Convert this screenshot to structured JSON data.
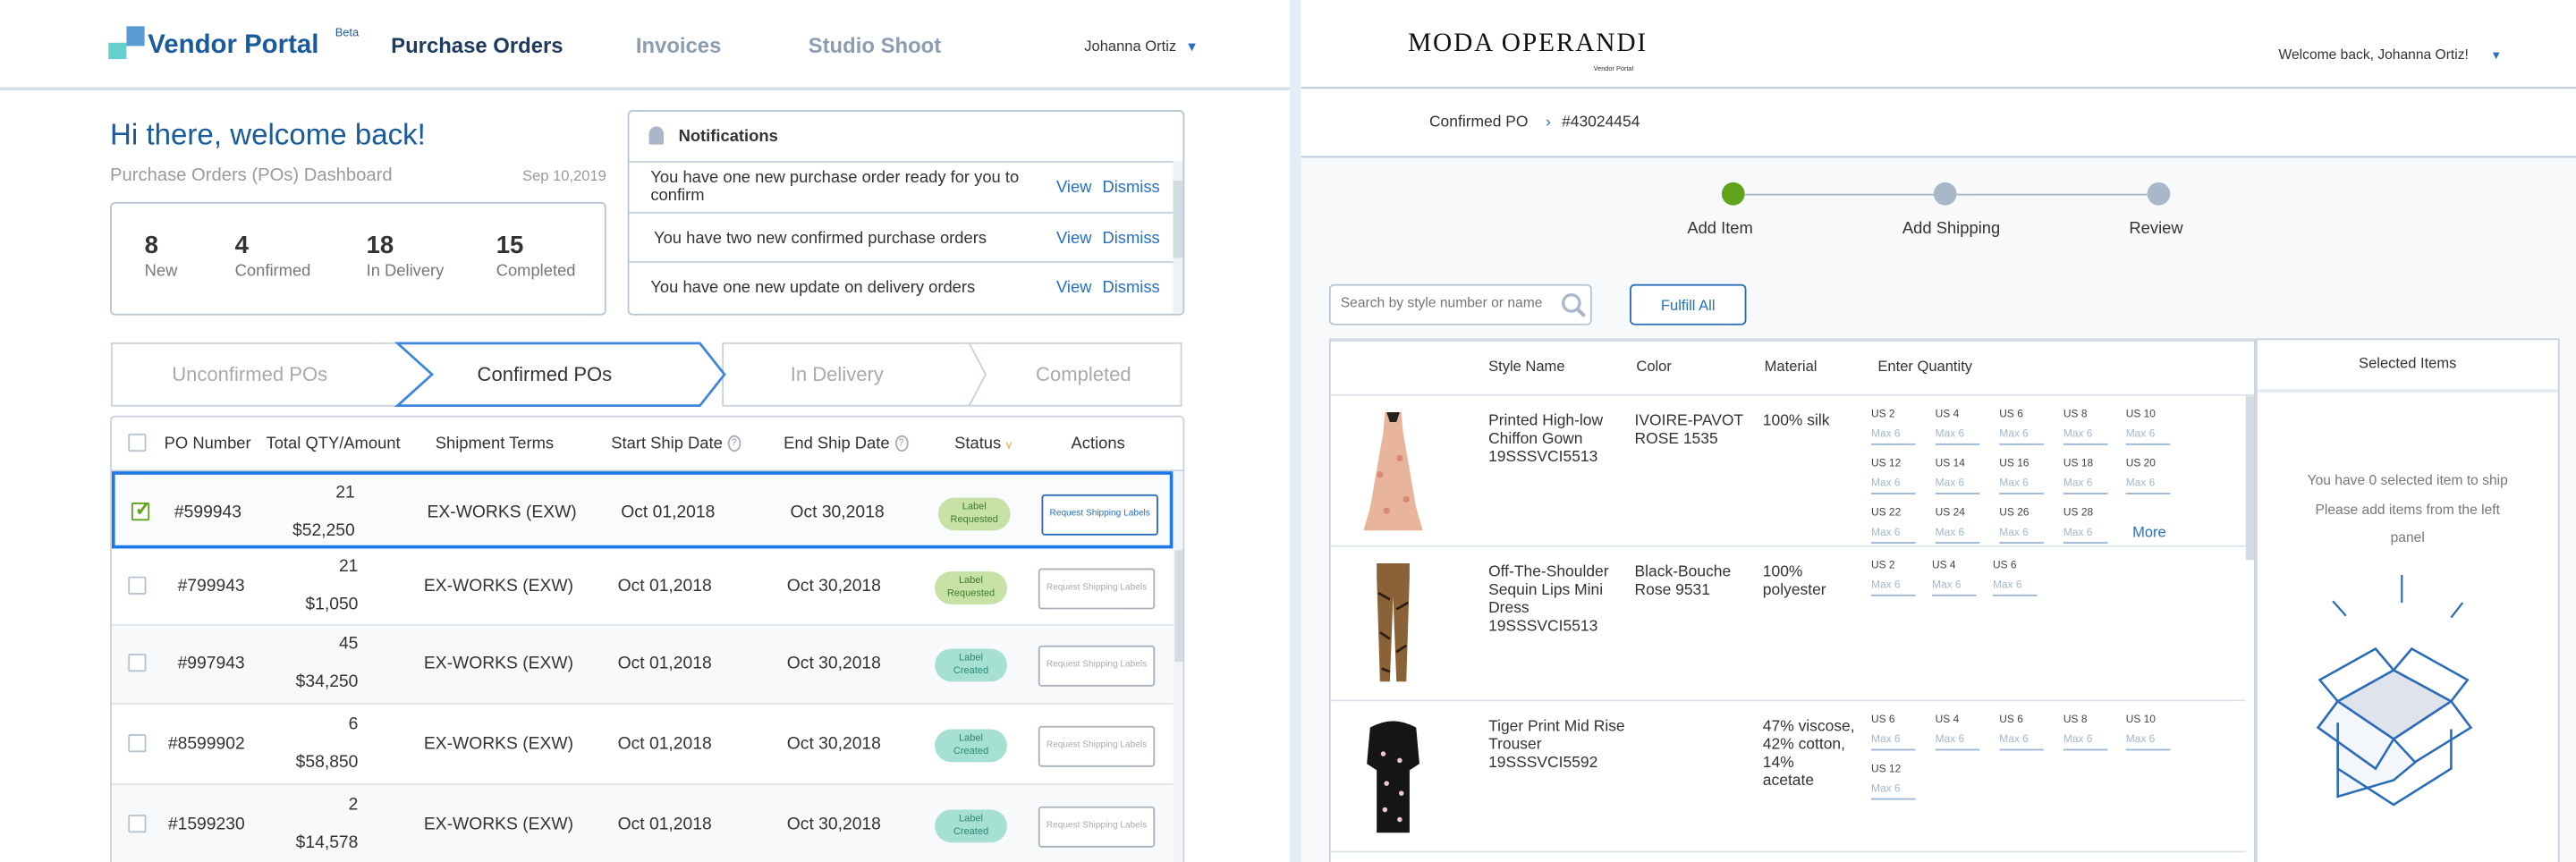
{
  "left": {
    "brand": {
      "name": "Vendor Portal",
      "tag": "Beta",
      "colors": {
        "primary": "#1a5b9c",
        "square_blue": "#5b9bd5",
        "square_teal": "#66d0cf"
      }
    },
    "nav": [
      {
        "label": "Purchase Orders",
        "active": true
      },
      {
        "label": "Invoices",
        "active": false
      },
      {
        "label": "Studio Shoot",
        "active": false
      }
    ],
    "user": {
      "name": "Johanna Ortiz",
      "icon": "caret-down-icon"
    },
    "greeting": "Hi there, welcome back!",
    "dashboard_title": "Purchase Orders (POs) Dashboard",
    "date": "Sep 10,2019",
    "stats": [
      {
        "value": "8",
        "label": "New"
      },
      {
        "value": "4",
        "label": "Confirmed"
      },
      {
        "value": "18",
        "label": "In Delivery"
      },
      {
        "value": "15",
        "label": "Completed"
      }
    ],
    "notifications": {
      "title": "Notifications",
      "icon": "bell-icon",
      "items": [
        {
          "text": "You have one new purchase order ready for you to confirm",
          "view": "View",
          "dismiss": "Dismiss"
        },
        {
          "text": "You have two new confirmed purchase orders",
          "view": "View",
          "dismiss": "Dismiss"
        },
        {
          "text": "You have one new update on delivery orders",
          "view": "View",
          "dismiss": "Dismiss"
        }
      ]
    },
    "tabs": [
      {
        "label": "Unconfirmed POs",
        "active": false
      },
      {
        "label": "Confirmed POs",
        "active": true
      },
      {
        "label": "In Delivery",
        "active": false
      },
      {
        "label": "Completed",
        "active": false
      }
    ],
    "table": {
      "headers": {
        "po": "PO Number",
        "qty": "Total QTY/Amount",
        "terms": "Shipment Terms",
        "start": "Start Ship Date",
        "end": "End Ship Date",
        "status": "Status",
        "actions": "Actions"
      },
      "rows": [
        {
          "selected": true,
          "po": "#599943",
          "qty": "21",
          "amount": "$52,250",
          "terms": "EX-WORKS (EXW)",
          "start": "Oct 01,2018",
          "end": "Oct 30,2018",
          "status": [
            "Label",
            "Requested"
          ],
          "status_type": "requested",
          "action": "Request Shipping Labels"
        },
        {
          "selected": false,
          "po": "#799943",
          "qty": "21",
          "amount": "$1,050",
          "terms": "EX-WORKS (EXW)",
          "start": "Oct 01,2018",
          "end": "Oct 30,2018",
          "status": [
            "Label",
            "Requested"
          ],
          "status_type": "requested",
          "action": "Request Shipping Labels"
        },
        {
          "selected": false,
          "po": "#997943",
          "qty": "45",
          "amount": "$34,250",
          "terms": "EX-WORKS (EXW)",
          "start": "Oct 01,2018",
          "end": "Oct 30,2018",
          "status": [
            "Label",
            "Created"
          ],
          "status_type": "created",
          "action": "Request Shipping Labels"
        },
        {
          "selected": false,
          "po": "#8599902",
          "qty": "6",
          "amount": "$58,850",
          "terms": "EX-WORKS (EXW)",
          "start": "Oct 01,2018",
          "end": "Oct 30,2018",
          "status": [
            "Label",
            "Created"
          ],
          "status_type": "created",
          "action": "Request Shipping Labels"
        },
        {
          "selected": false,
          "po": "#1599230",
          "qty": "2",
          "amount": "$14,578",
          "terms": "EX-WORKS (EXW)",
          "start": "Oct 01,2018",
          "end": "Oct 30,2018",
          "status": [
            "Label",
            "Created"
          ],
          "status_type": "created",
          "action": "Request Shipping Labels"
        }
      ],
      "status_colors": {
        "requested_bg": "#c6e2a6",
        "requested_fg": "#3f7d2a",
        "created_bg": "#a5e0d2",
        "created_fg": "#2a8a72"
      }
    }
  },
  "right": {
    "brand": {
      "name": "MODA OPERANDI",
      "sub": "Vendor Portal"
    },
    "welcome": "Welcome back, Johanna Ortiz!",
    "breadcrumb": [
      {
        "label": "Confirmed PO"
      },
      {
        "label": "#43024454"
      }
    ],
    "steps": [
      {
        "label": "Add Item",
        "state": "current",
        "color": "#5fa31a"
      },
      {
        "label": "Add Shipping",
        "state": "upcoming",
        "color": "#a9b8c8"
      },
      {
        "label": "Review",
        "state": "upcoming",
        "color": "#a9b8c8"
      }
    ],
    "search": {
      "placeholder": "Search by style number or name",
      "value": ""
    },
    "fulfill_all": "Fulfill All",
    "table": {
      "headers": {
        "style": "Style Name",
        "color": "Color",
        "material": "Material",
        "quantity": "Enter Quantity"
      },
      "products": [
        {
          "name": [
            "Printed High-low",
            "Chiffon Gown",
            "19SSSVCI5513"
          ],
          "color": [
            "IVOIRE-PAVOT",
            "ROSE 1535"
          ],
          "material": [
            "100% silk"
          ],
          "image": "dress-pink",
          "sizes": [
            "US 2",
            "US 4",
            "US 6",
            "US 8",
            "US 10",
            "US 12",
            "US 14",
            "US 16",
            "US 18",
            "US 20",
            "US 22",
            "US 24",
            "US 26",
            "US 28"
          ],
          "more": "More"
        },
        {
          "name": [
            "Off-The-Shoulder",
            "Sequin Lips Mini",
            "Dress",
            "19SSSVCI5513"
          ],
          "color": [
            "Black-Bouche",
            "Rose 9531"
          ],
          "material": [
            "100%",
            "polyester"
          ],
          "image": "trousers-print",
          "sizes": [
            "US 2",
            "US 4",
            "US 6"
          ]
        },
        {
          "name": [
            "Tiger Print Mid Rise",
            "Trouser",
            "19SSSVCI5592"
          ],
          "color": [],
          "material": [
            "47% viscose,",
            "42% cotton, 14%",
            "acetate"
          ],
          "image": "dress-black",
          "sizes": [
            "US 6",
            "US 4",
            "US 6",
            "US 8",
            "US 10",
            "US 12"
          ]
        }
      ],
      "size_placeholder": "Max 6"
    },
    "selected": {
      "title": "Selected Items",
      "empty_line1": "You have 0 selected item to ship",
      "empty_line2": "Please add items from the left panel",
      "icon": "open-box-icon"
    }
  }
}
